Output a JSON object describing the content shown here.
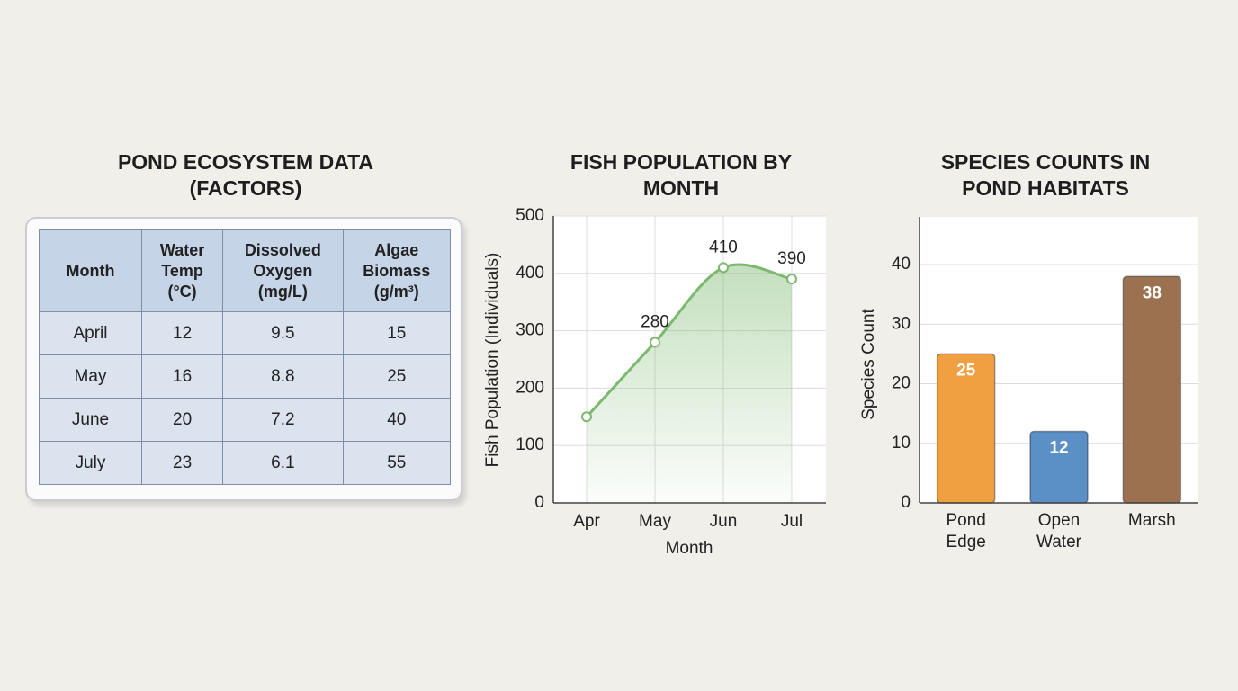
{
  "table": {
    "title": "POND ECOSYSTEM DATA (FACTORS)",
    "columns": [
      "Month",
      "Water Temp (°C)",
      "Dissolved Oxygen (mg/L)",
      "Algae Biomass (g/m³)"
    ],
    "rows": [
      [
        "April",
        12,
        9.5,
        15
      ],
      [
        "May",
        16,
        8.8,
        25
      ],
      [
        "June",
        20,
        7.2,
        40
      ],
      [
        "July",
        23,
        6.1,
        55
      ]
    ]
  },
  "chart_data": [
    {
      "type": "line",
      "title": "FISH POPULATION BY MONTH",
      "x_label": "Month",
      "y_label": "Fish Population (Individuals)",
      "categories": [
        "Apr",
        "May",
        "Jun",
        "Jul"
      ],
      "values": [
        150,
        280,
        410,
        390
      ],
      "value_labels": [
        null,
        "280",
        "410",
        "390"
      ],
      "color": "#7cb86e",
      "ylim": [
        0,
        500
      ],
      "yticks": [
        0,
        100,
        200,
        300,
        400,
        500
      ],
      "grid": true
    },
    {
      "type": "bar",
      "title": "SPECIES COUNTS IN POND HABITATS",
      "y_label": "Species Count",
      "categories": [
        "Pond Edge",
        "Open Water",
        "Marsh"
      ],
      "values": [
        25,
        12,
        38
      ],
      "colors": [
        "#f0a040",
        "#5b90c6",
        "#9c7150"
      ],
      "ylim": [
        0,
        48
      ],
      "yticks": [
        0,
        10,
        20,
        30,
        40
      ],
      "grid": true
    }
  ]
}
